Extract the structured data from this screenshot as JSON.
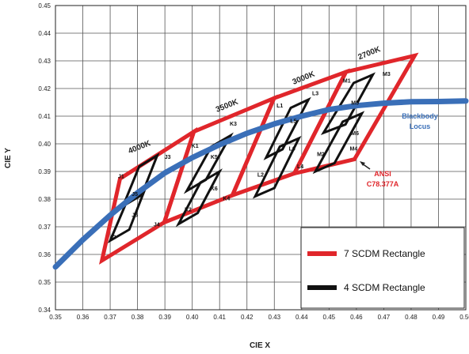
{
  "chart_data": {
    "type": "line",
    "xlabel": "CIE X",
    "ylabel": "CIE Y",
    "xlim": [
      0.35,
      0.5
    ],
    "ylim": [
      0.34,
      0.45
    ],
    "xticks": [
      "0.35",
      "0.36",
      "0.37",
      "0.38",
      "0.39",
      "0.40",
      "0.41",
      "0.42",
      "0.43",
      "0.44",
      "0.45",
      "0.46",
      "0.47",
      "0.48",
      "0.49",
      "0.50"
    ],
    "yticks": [
      "0.34",
      "0.35",
      "0.36",
      "0.37",
      "0.38",
      "0.39",
      "0.40",
      "0.41",
      "0.42",
      "0.43",
      "0.44",
      "0.45"
    ],
    "grid": true,
    "legend_placement": "bottom-right",
    "colors": {
      "seven_step": "#e0262b",
      "four_step": "#111111",
      "locus": "#3a6fb8"
    },
    "legend": [
      {
        "label": "7 SCDM Rectangle",
        "color": "#e0262b"
      },
      {
        "label": "4 SCDM Rectangle",
        "color": "#111111"
      }
    ],
    "locus": {
      "label_line1": "Blackbody",
      "label_line2": "Locus",
      "points": [
        [
          0.35,
          0.3555
        ],
        [
          0.36,
          0.3653
        ],
        [
          0.37,
          0.3742
        ],
        [
          0.38,
          0.3823
        ],
        [
          0.39,
          0.3895
        ],
        [
          0.4,
          0.395
        ],
        [
          0.41,
          0.3997
        ],
        [
          0.42,
          0.4038
        ],
        [
          0.43,
          0.4072
        ],
        [
          0.44,
          0.41
        ],
        [
          0.45,
          0.4124
        ],
        [
          0.46,
          0.4138
        ],
        [
          0.47,
          0.4147
        ],
        [
          0.48,
          0.4152
        ],
        [
          0.49,
          0.4153
        ],
        [
          0.5,
          0.4155
        ]
      ]
    },
    "seven_step": [
      {
        "cct": "4000K",
        "points": [
          [
            0.3736,
            0.3874
          ],
          [
            0.4006,
            0.4044
          ],
          [
            0.3898,
            0.3716
          ],
          [
            0.367,
            0.3578
          ]
        ]
      },
      {
        "cct": "3500K",
        "points": [
          [
            0.4006,
            0.4044
          ],
          [
            0.4299,
            0.4165
          ],
          [
            0.4147,
            0.3814
          ],
          [
            0.3898,
            0.3716
          ]
        ]
      },
      {
        "cct": "3000K",
        "points": [
          [
            0.4299,
            0.4165
          ],
          [
            0.4562,
            0.426
          ],
          [
            0.4373,
            0.3893
          ],
          [
            0.4147,
            0.3814
          ]
        ]
      },
      {
        "cct": "2700K",
        "points": [
          [
            0.4562,
            0.426
          ],
          [
            0.4813,
            0.4319
          ],
          [
            0.4593,
            0.3944
          ],
          [
            0.4373,
            0.3893
          ]
        ]
      }
    ],
    "four_step": [
      {
        "points": [
          [
            0.3806,
            0.3918
          ],
          [
            0.3872,
            0.3958
          ],
          [
            0.3815,
            0.3815
          ],
          [
            0.3747,
            0.3775
          ]
        ]
      },
      {
        "points": [
          [
            0.376,
            0.379
          ],
          [
            0.3825,
            0.383
          ],
          [
            0.377,
            0.369
          ],
          [
            0.37,
            0.365
          ]
        ]
      },
      {
        "points": [
          [
            0.407,
            0.399
          ],
          [
            0.414,
            0.403
          ],
          [
            0.405,
            0.387
          ],
          [
            0.398,
            0.383
          ]
        ]
      },
      {
        "points": [
          [
            0.403,
            0.386
          ],
          [
            0.41,
            0.39
          ],
          [
            0.402,
            0.375
          ],
          [
            0.395,
            0.371
          ]
        ]
      },
      {
        "points": [
          [
            0.436,
            0.413
          ],
          [
            0.4425,
            0.416
          ],
          [
            0.433,
            0.398
          ],
          [
            0.427,
            0.395
          ]
        ]
      },
      {
        "points": [
          [
            0.432,
            0.399
          ],
          [
            0.439,
            0.402
          ],
          [
            0.43,
            0.384
          ],
          [
            0.423,
            0.381
          ]
        ]
      },
      {
        "points": [
          [
            0.459,
            0.422
          ],
          [
            0.466,
            0.425
          ],
          [
            0.456,
            0.407
          ],
          [
            0.448,
            0.404
          ]
        ]
      },
      {
        "points": [
          [
            0.455,
            0.408
          ],
          [
            0.462,
            0.411
          ],
          [
            0.452,
            0.393
          ],
          [
            0.445,
            0.39
          ]
        ]
      }
    ],
    "cct_labels": [
      {
        "text": "4000K",
        "x": 0.381,
        "y": 0.398
      },
      {
        "text": "3500K",
        "x": 0.413,
        "y": 0.413
      },
      {
        "text": "3000K",
        "x": 0.441,
        "y": 0.423
      },
      {
        "text": "2700K",
        "x": 0.465,
        "y": 0.432
      }
    ],
    "bin_labels": [
      {
        "text": "J1",
        "x": 0.374,
        "y": 0.3885
      },
      {
        "text": "J3",
        "x": 0.391,
        "y": 0.3955
      },
      {
        "text": "J5",
        "x": 0.379,
        "y": 0.382
      },
      {
        "text": "J6",
        "x": 0.379,
        "y": 0.3745
      },
      {
        "text": "J2",
        "x": 0.371,
        "y": 0.3665
      },
      {
        "text": "J4",
        "x": 0.387,
        "y": 0.371
      },
      {
        "text": "K1",
        "x": 0.401,
        "y": 0.3995
      },
      {
        "text": "K3",
        "x": 0.415,
        "y": 0.4075
      },
      {
        "text": "K5",
        "x": 0.408,
        "y": 0.3955
      },
      {
        "text": "K6",
        "x": 0.408,
        "y": 0.384
      },
      {
        "text": "K2",
        "x": 0.3985,
        "y": 0.3765
      },
      {
        "text": "K4",
        "x": 0.4125,
        "y": 0.3805
      },
      {
        "text": "L1",
        "x": 0.432,
        "y": 0.414
      },
      {
        "text": "L3",
        "x": 0.445,
        "y": 0.4185
      },
      {
        "text": "L5",
        "x": 0.437,
        "y": 0.4085
      },
      {
        "text": "L6",
        "x": 0.4365,
        "y": 0.3985
      },
      {
        "text": "L2",
        "x": 0.425,
        "y": 0.389
      },
      {
        "text": "L4",
        "x": 0.4395,
        "y": 0.392
      },
      {
        "text": "M1",
        "x": 0.4565,
        "y": 0.423
      },
      {
        "text": "M3",
        "x": 0.471,
        "y": 0.4255
      },
      {
        "text": "M5",
        "x": 0.4595,
        "y": 0.415
      },
      {
        "text": "M6",
        "x": 0.4595,
        "y": 0.404
      },
      {
        "text": "M2",
        "x": 0.447,
        "y": 0.3965
      },
      {
        "text": "M4",
        "x": 0.459,
        "y": 0.3985
      }
    ],
    "annotation": {
      "line1": "ANSI",
      "line2": "C78.377A"
    }
  }
}
